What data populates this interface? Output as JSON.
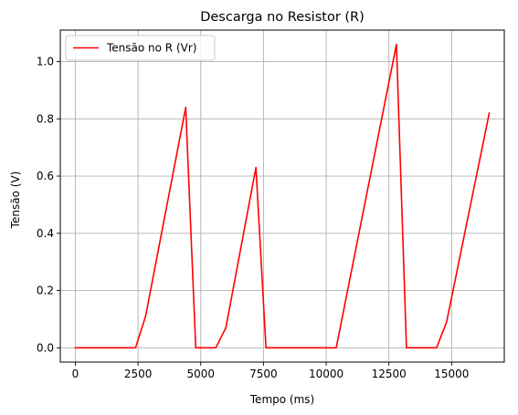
{
  "chart_data": {
    "type": "line",
    "title": "Descarga no Resistor (R)",
    "xlabel": "Tempo (ms)",
    "ylabel": "Tensão (V)",
    "xlim": [
      -600,
      17100
    ],
    "ylim": [
      -0.05,
      1.11
    ],
    "x_ticks": [
      0,
      2500,
      5000,
      7500,
      10000,
      12500,
      15000
    ],
    "x_tick_labels": [
      "0",
      "2500",
      "5000",
      "7500",
      "10000",
      "12500",
      "15000"
    ],
    "y_ticks": [
      0.0,
      0.2,
      0.4,
      0.6,
      0.8,
      1.0
    ],
    "y_tick_labels": [
      "0.0",
      "0.2",
      "0.4",
      "0.6",
      "0.8",
      "1.0"
    ],
    "grid": true,
    "legend_position": "top-left",
    "series": [
      {
        "name": "Tensão no R (Vr)",
        "color": "#ff0000",
        "x": [
          0,
          2400,
          2800,
          4400,
          4800,
          5600,
          6000,
          7200,
          7600,
          10400,
          12800,
          13200,
          14400,
          14800,
          16500
        ],
        "y": [
          0.0,
          0.0,
          0.11,
          0.84,
          0.0,
          0.0,
          0.07,
          0.63,
          0.0,
          0.0,
          1.06,
          0.0,
          0.0,
          0.09,
          0.82
        ]
      }
    ]
  }
}
